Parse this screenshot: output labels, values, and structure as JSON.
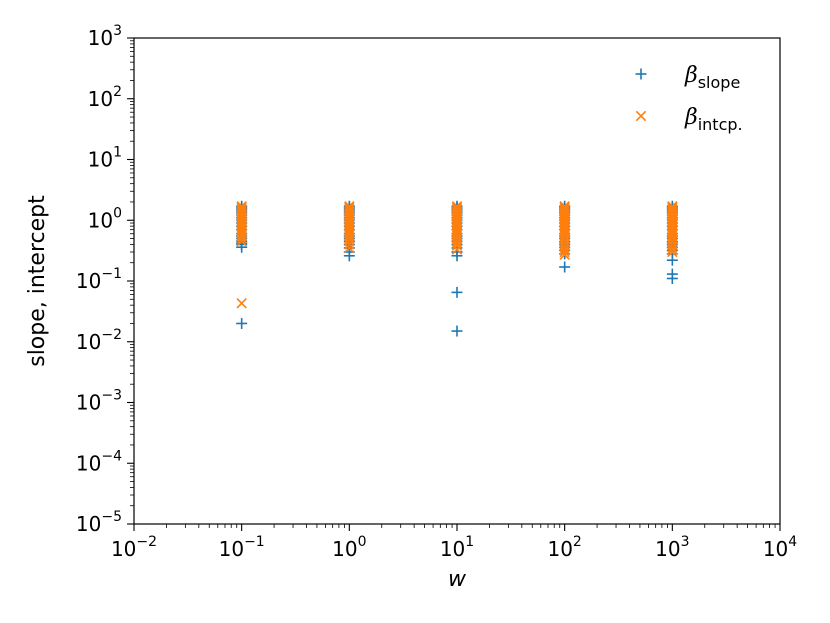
{
  "chart_data": {
    "type": "scatter",
    "xlabel": "w",
    "ylabel": "slope, intercept",
    "xscale": "log",
    "yscale": "log",
    "xlim_exp": [
      -2,
      4
    ],
    "ylim_exp": [
      -5,
      3
    ],
    "x_tick_labels": [
      {
        "exp": -2,
        "base": "10",
        "sup": "−2"
      },
      {
        "exp": -1,
        "base": "10",
        "sup": "−1"
      },
      {
        "exp": 0,
        "base": "10",
        "sup": "0"
      },
      {
        "exp": 1,
        "base": "10",
        "sup": "1"
      },
      {
        "exp": 2,
        "base": "10",
        "sup": "2"
      },
      {
        "exp": 3,
        "base": "10",
        "sup": "3"
      },
      {
        "exp": 4,
        "base": "10",
        "sup": "4"
      }
    ],
    "y_tick_labels": [
      {
        "exp": -5,
        "base": "10",
        "sup": "−5"
      },
      {
        "exp": -4,
        "base": "10",
        "sup": "−4"
      },
      {
        "exp": -3,
        "base": "10",
        "sup": "−3"
      },
      {
        "exp": -2,
        "base": "10",
        "sup": "−2"
      },
      {
        "exp": -1,
        "base": "10",
        "sup": "−1"
      },
      {
        "exp": 0,
        "base": "10",
        "sup": "0"
      },
      {
        "exp": 1,
        "base": "10",
        "sup": "1"
      },
      {
        "exp": 2,
        "base": "10",
        "sup": "2"
      },
      {
        "exp": 3,
        "base": "10",
        "sup": "3"
      }
    ],
    "grid": false,
    "legend_position": "top-right",
    "series": [
      {
        "name": "β",
        "subscript": "slope",
        "marker": "plus",
        "color": "#1f77b4",
        "points": [
          {
            "x": 0.1,
            "values": [
              0.02,
              0.36,
              0.4,
              0.42,
              0.45,
              0.5,
              0.55,
              0.6,
              0.7,
              0.8,
              0.9,
              1.0,
              1.1,
              1.2,
              1.3,
              1.4,
              1.5,
              1.6,
              1.7
            ]
          },
          {
            "x": 1,
            "values": [
              0.26,
              0.3,
              0.35,
              0.4,
              0.45,
              0.5,
              0.55,
              0.6,
              0.7,
              0.8,
              0.9,
              1.0,
              1.1,
              1.2,
              1.3,
              1.4,
              1.5,
              1.6,
              1.7
            ]
          },
          {
            "x": 10,
            "values": [
              0.015,
              0.065,
              0.26,
              0.3,
              0.35,
              0.4,
              0.45,
              0.5,
              0.55,
              0.6,
              0.7,
              0.8,
              0.9,
              1.0,
              1.1,
              1.2,
              1.3,
              1.4,
              1.5,
              1.6,
              1.7
            ]
          },
          {
            "x": 100,
            "values": [
              0.17,
              0.28,
              0.32,
              0.36,
              0.4,
              0.44,
              0.5,
              0.55,
              0.6,
              0.7,
              0.8,
              0.9,
              1.0,
              1.1,
              1.2,
              1.3,
              1.4,
              1.5,
              1.6,
              1.7
            ]
          },
          {
            "x": 1000,
            "values": [
              0.11,
              0.13,
              0.22,
              0.28,
              0.32,
              0.36,
              0.4,
              0.44,
              0.5,
              0.55,
              0.6,
              0.7,
              0.8,
              0.9,
              1.0,
              1.1,
              1.2,
              1.3,
              1.4,
              1.5,
              1.6,
              1.7
            ]
          }
        ]
      },
      {
        "name": "β",
        "subscript": "intcp.",
        "marker": "x",
        "color": "#ff7f0e",
        "points": [
          {
            "x": 0.1,
            "values": [
              0.043,
              0.45,
              0.5,
              0.55,
              0.6,
              0.65,
              0.7,
              0.75,
              0.8,
              0.85,
              0.9,
              0.95,
              1.0,
              1.05,
              1.1,
              1.2,
              1.3,
              1.4,
              1.5,
              1.6,
              1.7
            ]
          },
          {
            "x": 1,
            "values": [
              0.35,
              0.4,
              0.45,
              0.5,
              0.55,
              0.6,
              0.65,
              0.7,
              0.75,
              0.8,
              0.85,
              0.9,
              0.95,
              1.0,
              1.05,
              1.1,
              1.2,
              1.3,
              1.4,
              1.5,
              1.6,
              1.7
            ]
          },
          {
            "x": 10,
            "values": [
              0.33,
              0.38,
              0.42,
              0.45,
              0.5,
              0.55,
              0.6,
              0.65,
              0.7,
              0.75,
              0.8,
              0.85,
              0.9,
              0.95,
              1.0,
              1.05,
              1.1,
              1.2,
              1.3,
              1.4,
              1.5,
              1.6,
              1.7
            ]
          },
          {
            "x": 100,
            "values": [
              0.27,
              0.3,
              0.33,
              0.36,
              0.4,
              0.45,
              0.5,
              0.55,
              0.6,
              0.65,
              0.7,
              0.75,
              0.8,
              0.85,
              0.9,
              0.95,
              1.0,
              1.05,
              1.1,
              1.2,
              1.3,
              1.4,
              1.5,
              1.6,
              1.7
            ]
          },
          {
            "x": 1000,
            "values": [
              0.3,
              0.33,
              0.36,
              0.4,
              0.45,
              0.5,
              0.55,
              0.6,
              0.65,
              0.7,
              0.75,
              0.8,
              0.85,
              0.9,
              0.95,
              1.0,
              1.05,
              1.1,
              1.2,
              1.3,
              1.4,
              1.5,
              1.6,
              1.7
            ]
          }
        ]
      }
    ]
  }
}
